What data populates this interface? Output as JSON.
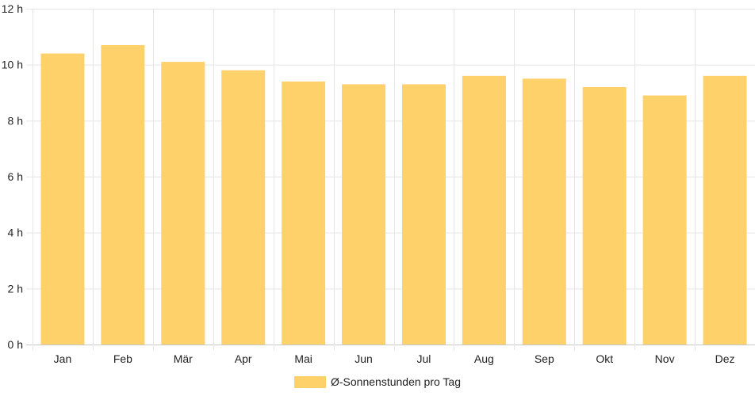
{
  "chart_data": {
    "type": "bar",
    "categories": [
      "Jan",
      "Feb",
      "Mär",
      "Apr",
      "Mai",
      "Jun",
      "Jul",
      "Aug",
      "Sep",
      "Okt",
      "Nov",
      "Dez"
    ],
    "series": [
      {
        "name": "Ø-Sonnenstunden pro Tag",
        "values": [
          10.4,
          10.7,
          10.1,
          9.8,
          9.4,
          9.3,
          9.3,
          9.6,
          9.5,
          9.2,
          8.9,
          9.6
        ],
        "color": "#fed16a"
      }
    ],
    "y_ticks": [
      "0 h",
      "2 h",
      "4 h",
      "6 h",
      "8 h",
      "10 h",
      "12 h"
    ],
    "ylim": [
      0,
      12
    ],
    "grid": true,
    "legend_position": "bottom"
  }
}
